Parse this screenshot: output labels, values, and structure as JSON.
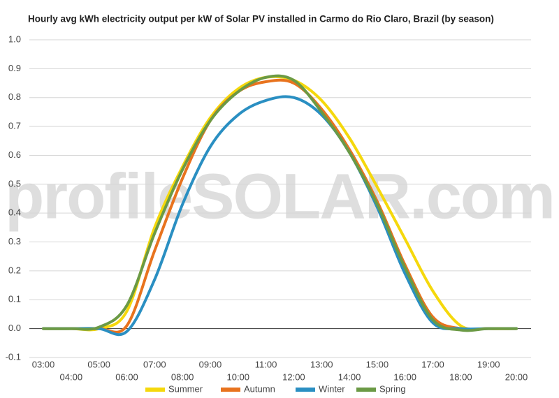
{
  "chart_data": {
    "type": "line",
    "title": "Hourly avg kWh electricity output per kW of Solar PV installed in Carmo do Rio Claro, Brazil (by season)",
    "watermark": "profileSOLAR.com",
    "categories": [
      "03:00",
      "04:00",
      "05:00",
      "06:00",
      "07:00",
      "08:00",
      "09:00",
      "10:00",
      "11:00",
      "12:00",
      "13:00",
      "14:00",
      "15:00",
      "16:00",
      "17:00",
      "18:00",
      "19:00",
      "20:00"
    ],
    "series": [
      {
        "name": "Summer",
        "color": "#f5d80c",
        "values": [
          0,
          0,
          0,
          0.06,
          0.35,
          0.56,
          0.73,
          0.83,
          0.87,
          0.86,
          0.79,
          0.66,
          0.49,
          0.31,
          0.13,
          0.01,
          0,
          0
        ]
      },
      {
        "name": "Autumn",
        "color": "#e8731e",
        "values": [
          0,
          0,
          0,
          0.01,
          0.27,
          0.52,
          0.72,
          0.82,
          0.855,
          0.85,
          0.76,
          0.62,
          0.44,
          0.22,
          0.04,
          0,
          0,
          0
        ]
      },
      {
        "name": "Winter",
        "color": "#2a8fc2",
        "values": [
          0,
          0,
          0,
          -0.01,
          0.17,
          0.43,
          0.63,
          0.74,
          0.79,
          0.8,
          0.74,
          0.61,
          0.42,
          0.19,
          0.02,
          0,
          0,
          0
        ]
      },
      {
        "name": "Spring",
        "color": "#6b9a45",
        "values": [
          0,
          0,
          0.005,
          0.08,
          0.33,
          0.55,
          0.72,
          0.82,
          0.87,
          0.86,
          0.75,
          0.61,
          0.43,
          0.21,
          0.03,
          -0.005,
          0,
          0
        ]
      }
    ],
    "ylim": [
      -0.1,
      1.0
    ],
    "yticks": [
      -0.1,
      {
        "value": 0,
        "label": "0.0"
      },
      0.1,
      0.2,
      0.3,
      0.4,
      0.5,
      0.6,
      0.7,
      0.8,
      0.9,
      {
        "value": 1,
        "label": "1.0"
      }
    ],
    "grid": true,
    "legend": "bottom"
  }
}
